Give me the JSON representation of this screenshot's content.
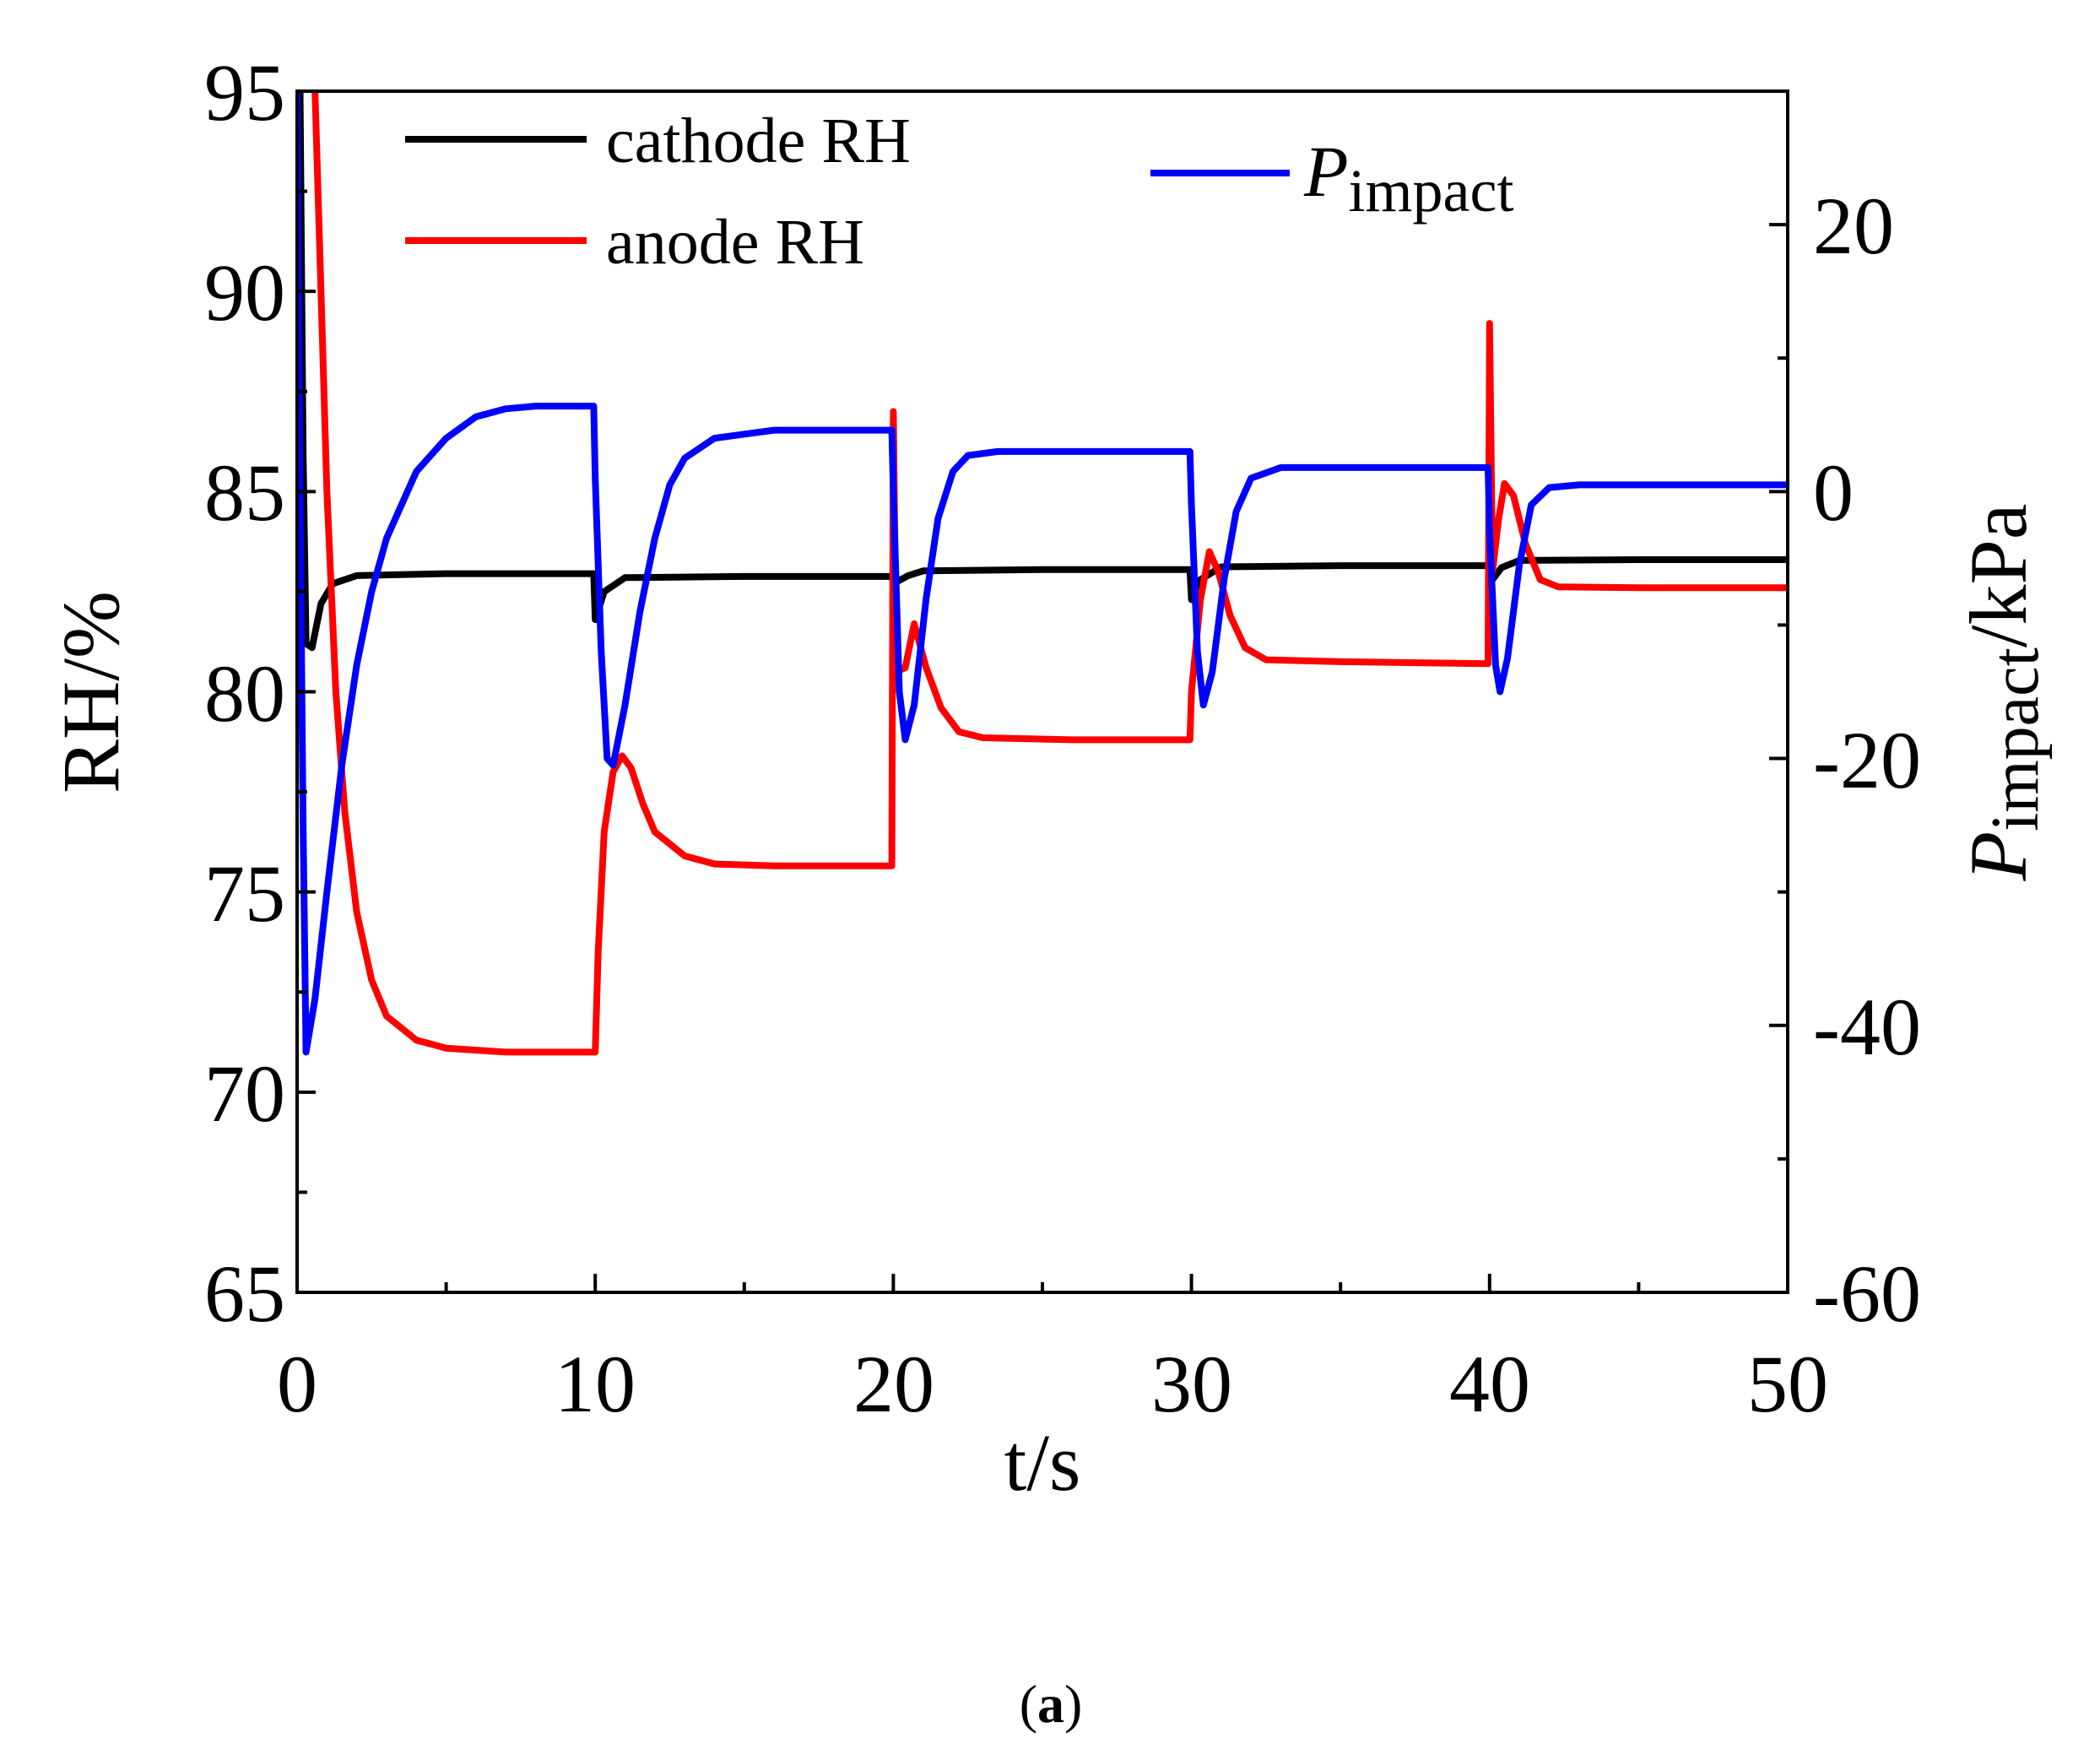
{
  "chart_data": {
    "type": "line",
    "x_axis": {
      "label": "t/s",
      "range": [
        0,
        50
      ],
      "ticks": [
        "0",
        "10",
        "20",
        "30",
        "40",
        "50"
      ]
    },
    "y_left": {
      "label": "RH/%",
      "range": [
        65,
        95
      ],
      "ticks": [
        "65",
        "70",
        "75",
        "80",
        "85",
        "90",
        "95"
      ]
    },
    "y_right": {
      "label_prefix": "P",
      "label_sub": "impact",
      "label_suffix": "/kPa",
      "range": [
        -60,
        30
      ],
      "ticks": [
        "-60",
        "-40",
        "-20",
        "0",
        "20"
      ]
    },
    "legend": [
      {
        "name": "cathode RH",
        "color": "#000000"
      },
      {
        "name": "anode RH",
        "color": "#ff0000"
      },
      {
        "name_prefix": "P",
        "name_sub": "impact",
        "color": "#0000ff"
      }
    ],
    "caption_open": "(",
    "caption_letter": "a",
    "caption_close": ")",
    "series": [
      {
        "name": "cathode RH",
        "axis": "left",
        "color": "#000000",
        "points": [
          [
            0,
            95
          ],
          [
            0.1,
            95
          ],
          [
            0.2,
            86
          ],
          [
            0.3,
            81.2
          ],
          [
            0.5,
            81.1
          ],
          [
            0.8,
            82.2
          ],
          [
            1.2,
            82.7
          ],
          [
            2,
            82.9
          ],
          [
            5,
            82.95
          ],
          [
            9.95,
            82.95
          ],
          [
            10,
            81.8
          ],
          [
            10.3,
            82.5
          ],
          [
            11,
            82.85
          ],
          [
            15,
            82.88
          ],
          [
            19.95,
            82.88
          ],
          [
            20,
            82.7
          ],
          [
            20.5,
            82.9
          ],
          [
            21,
            83.02
          ],
          [
            25,
            83.05
          ],
          [
            29.95,
            83.05
          ],
          [
            30,
            82.3
          ],
          [
            30.3,
            82.8
          ],
          [
            31,
            83.12
          ],
          [
            35,
            83.15
          ],
          [
            39.95,
            83.15
          ],
          [
            40,
            82.7
          ],
          [
            40.4,
            83.1
          ],
          [
            41,
            83.28
          ],
          [
            45,
            83.3
          ],
          [
            50,
            83.3
          ]
        ]
      },
      {
        "name": "anode RH",
        "axis": "left",
        "color": "#ff0000",
        "points": [
          [
            0.6,
            95
          ],
          [
            0.8,
            90
          ],
          [
            1,
            85
          ],
          [
            1.3,
            80
          ],
          [
            1.6,
            77
          ],
          [
            2,
            74.5
          ],
          [
            2.5,
            72.8
          ],
          [
            3,
            71.9
          ],
          [
            4,
            71.3
          ],
          [
            5,
            71.1
          ],
          [
            7,
            71
          ],
          [
            10,
            71
          ],
          [
            10.1,
            73.5
          ],
          [
            10.3,
            76.5
          ],
          [
            10.6,
            78
          ],
          [
            10.9,
            78.4
          ],
          [
            11.2,
            78.1
          ],
          [
            11.6,
            77.2
          ],
          [
            12,
            76.5
          ],
          [
            13,
            75.9
          ],
          [
            14,
            75.7
          ],
          [
            16,
            75.65
          ],
          [
            19.95,
            75.65
          ],
          [
            20,
            87
          ],
          [
            20.1,
            80.5
          ],
          [
            20.4,
            80.6
          ],
          [
            20.7,
            81.7
          ],
          [
            21.1,
            80.6
          ],
          [
            21.6,
            79.6
          ],
          [
            22.2,
            79
          ],
          [
            23,
            78.85
          ],
          [
            26,
            78.8
          ],
          [
            29.95,
            78.8
          ],
          [
            30,
            80
          ],
          [
            30.3,
            82.3
          ],
          [
            30.6,
            83.5
          ],
          [
            30.9,
            83
          ],
          [
            31.3,
            81.9
          ],
          [
            31.8,
            81.1
          ],
          [
            32.5,
            80.8
          ],
          [
            35,
            80.75
          ],
          [
            39.95,
            80.7
          ],
          [
            40,
            89.2
          ],
          [
            40.1,
            83
          ],
          [
            40.3,
            84.3
          ],
          [
            40.5,
            85.2
          ],
          [
            40.8,
            84.9
          ],
          [
            41.2,
            83.7
          ],
          [
            41.7,
            82.8
          ],
          [
            42.3,
            82.62
          ],
          [
            45,
            82.6
          ],
          [
            50,
            82.6
          ]
        ]
      },
      {
        "name": "P impact",
        "axis": "right",
        "color": "#0000ff",
        "points": [
          [
            0,
            30
          ],
          [
            0.1,
            0
          ],
          [
            0.2,
            -25
          ],
          [
            0.3,
            -42
          ],
          [
            0.6,
            -38
          ],
          [
            1,
            -30
          ],
          [
            1.5,
            -20.5
          ],
          [
            2,
            -13
          ],
          [
            2.5,
            -7.5
          ],
          [
            3,
            -3.5
          ],
          [
            4,
            1.5
          ],
          [
            5,
            4
          ],
          [
            6,
            5.6
          ],
          [
            7,
            6.2
          ],
          [
            8,
            6.4
          ],
          [
            9.95,
            6.4
          ],
          [
            10,
            1
          ],
          [
            10.2,
            -12
          ],
          [
            10.4,
            -20
          ],
          [
            10.6,
            -20.5
          ],
          [
            11,
            -16
          ],
          [
            11.5,
            -9
          ],
          [
            12,
            -3.5
          ],
          [
            12.5,
            0.5
          ],
          [
            13,
            2.5
          ],
          [
            14,
            4
          ],
          [
            16,
            4.6
          ],
          [
            19.95,
            4.6
          ],
          [
            20,
            0
          ],
          [
            20.2,
            -15
          ],
          [
            20.4,
            -18.6
          ],
          [
            20.7,
            -16
          ],
          [
            21.1,
            -8
          ],
          [
            21.5,
            -2
          ],
          [
            22,
            1.5
          ],
          [
            22.5,
            2.7
          ],
          [
            23.5,
            3
          ],
          [
            29.95,
            3
          ],
          [
            30,
            -1
          ],
          [
            30.2,
            -12
          ],
          [
            30.4,
            -16
          ],
          [
            30.7,
            -13.5
          ],
          [
            31.1,
            -6.5
          ],
          [
            31.5,
            -1.5
          ],
          [
            32,
            1
          ],
          [
            33,
            1.8
          ],
          [
            39.95,
            1.8
          ],
          [
            40,
            -3
          ],
          [
            40.2,
            -13
          ],
          [
            40.35,
            -15
          ],
          [
            40.6,
            -12.5
          ],
          [
            41,
            -5.5
          ],
          [
            41.4,
            -1
          ],
          [
            42,
            0.3
          ],
          [
            43,
            0.5
          ],
          [
            50,
            0.5
          ]
        ]
      }
    ]
  }
}
